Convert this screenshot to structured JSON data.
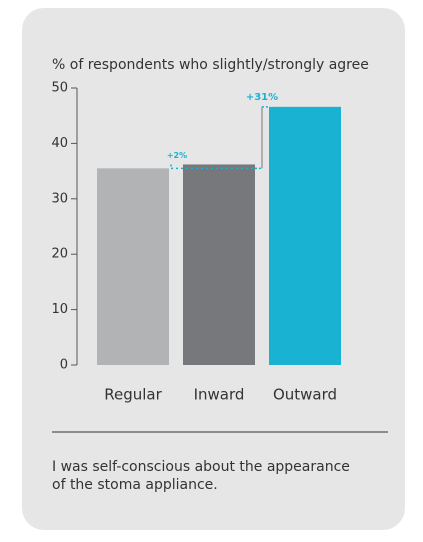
{
  "chart_data": {
    "type": "bar",
    "title": "% of respondents who slightly/strongly agree",
    "categories": [
      "Regular",
      "Inward",
      "Outward"
    ],
    "values": [
      35.5,
      36.2,
      46.6
    ],
    "colors": [
      "#b2b3b5",
      "#77787b",
      "#1ab2d3"
    ],
    "ylim": [
      0,
      50
    ],
    "yticks": [
      0,
      10,
      20,
      30,
      40,
      50
    ],
    "annotations": [
      "+2%",
      "+31%"
    ],
    "annotation_color": "#1ab2d3",
    "caption": [
      "I was self-conscious about the appearance",
      "of the stoma appliance."
    ]
  }
}
